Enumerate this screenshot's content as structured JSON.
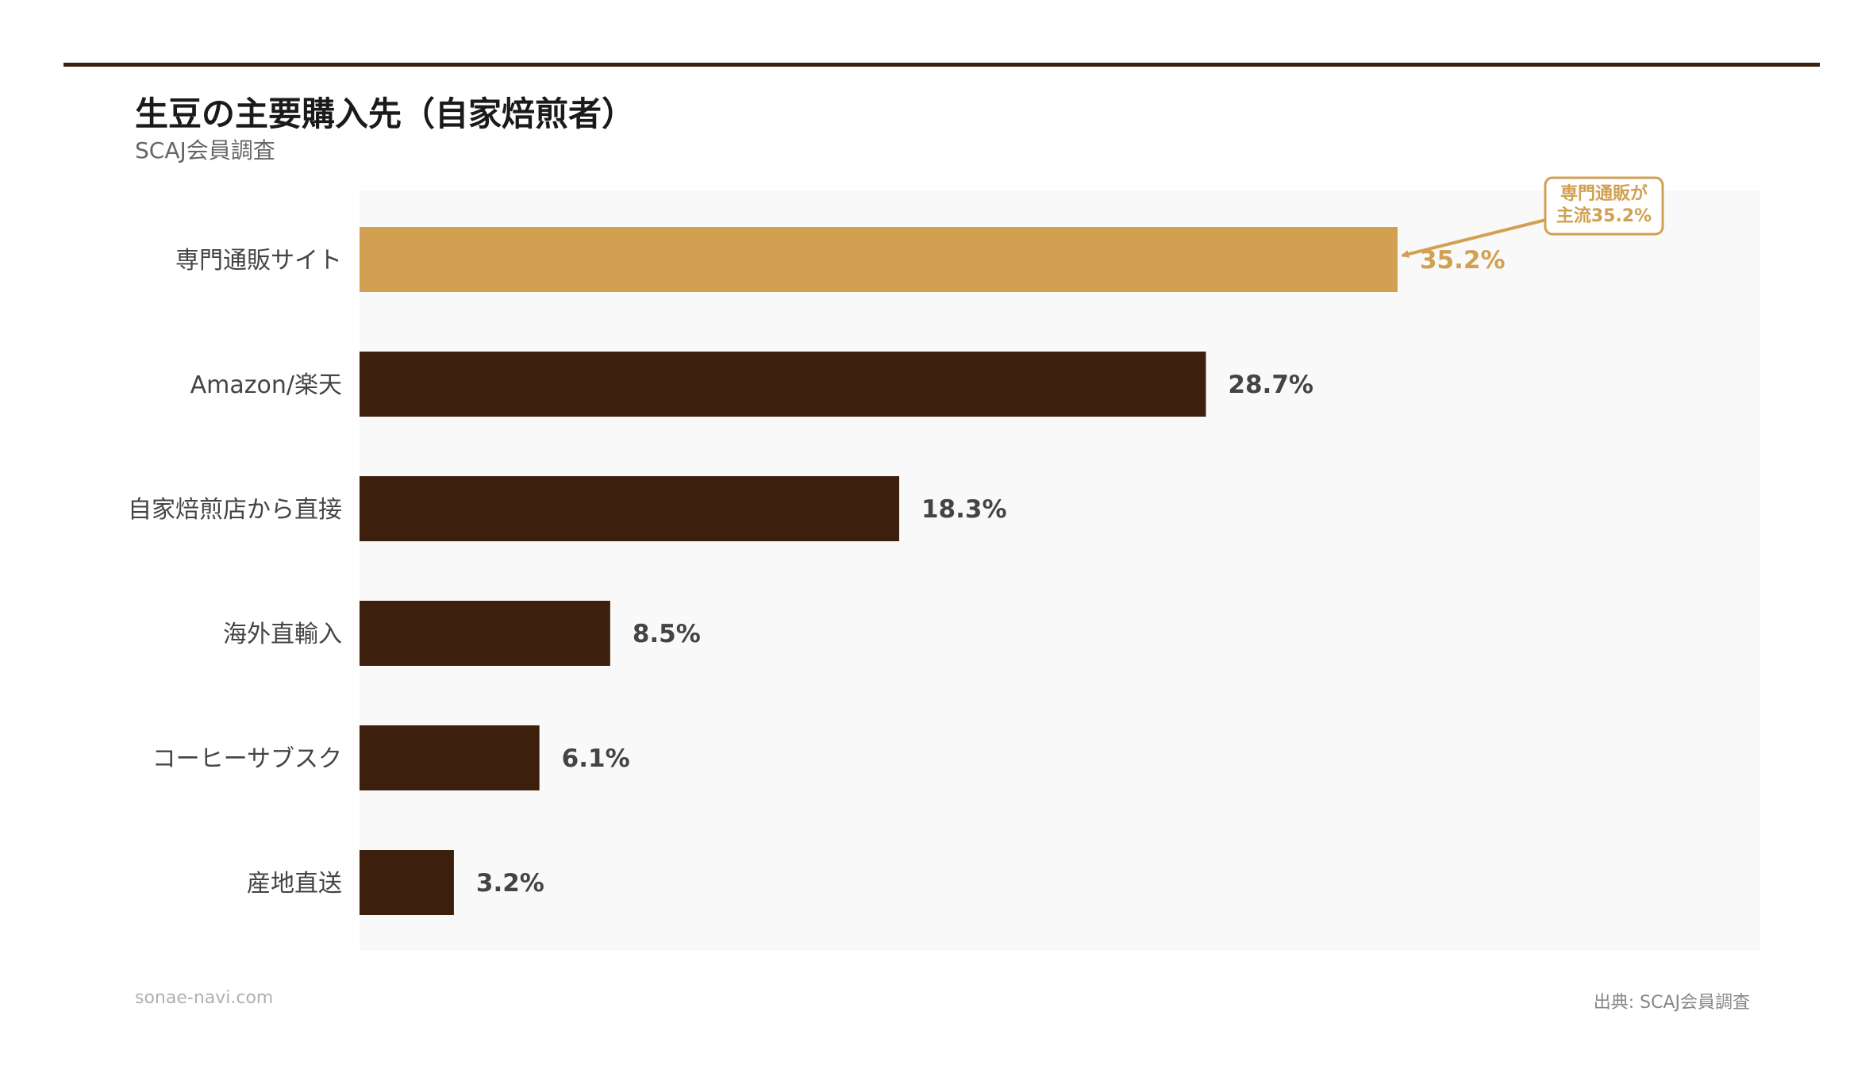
{
  "header": {
    "title": "生豆の主要購入先（自家焙煎者）",
    "subtitle": "SCAJ会員調査"
  },
  "footer": {
    "site": "sonae-navi.com",
    "source": "出典: SCAJ会員調査"
  },
  "annotation": {
    "lines": [
      "専門通販が",
      "主流35.2%"
    ],
    "color": "#d1a050"
  },
  "colors": {
    "highlight": "#d1a050",
    "bar": "#3c1f0c",
    "plot_background": "#f9f9f9",
    "label": "#444444"
  },
  "chart_data": {
    "type": "bar",
    "orientation": "horizontal",
    "categories": [
      "専門通販サイト",
      "Amazon/楽天",
      "自家焙煎店から直接",
      "海外直輸入",
      "コーヒーサブスク",
      "産地直送"
    ],
    "values": [
      35.2,
      28.7,
      18.3,
      8.5,
      6.1,
      3.2
    ],
    "value_labels": [
      "35.2%",
      "28.7%",
      "18.3%",
      "8.5%",
      "6.1%",
      "3.2%"
    ],
    "highlight_index": 0,
    "xlim": [
      0,
      47.5
    ],
    "grid": false,
    "legend": "none"
  }
}
